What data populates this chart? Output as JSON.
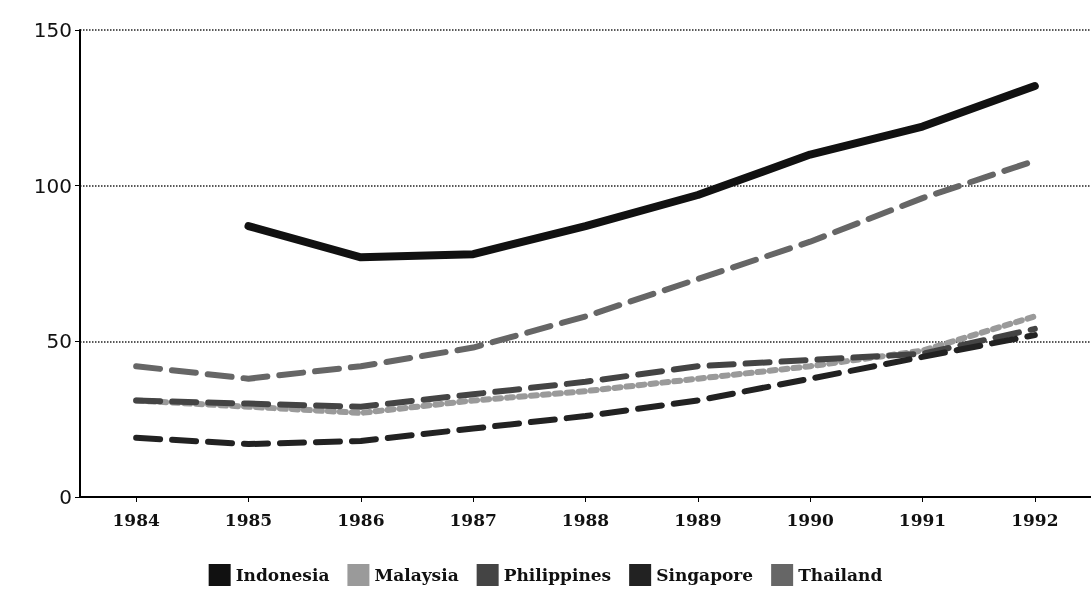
{
  "chart_data": {
    "type": "line",
    "categories": [
      "1984",
      "1985",
      "1986",
      "1987",
      "1988",
      "1989",
      "1990",
      "1991",
      "1992"
    ],
    "series": [
      {
        "name": "Indonesia",
        "color": "#111111",
        "line_style": "solid",
        "values": [
          null,
          87,
          77,
          78,
          87,
          97,
          110,
          119,
          132
        ]
      },
      {
        "name": "Malaysia",
        "color": "#9a9a9a",
        "line_style": "dotted",
        "values": [
          31,
          29,
          27,
          31,
          34,
          38,
          42,
          47,
          58
        ]
      },
      {
        "name": "Philippines",
        "color": "#444444",
        "line_style": "dashed",
        "values": [
          31,
          30,
          29,
          33,
          37,
          42,
          44,
          46,
          54
        ]
      },
      {
        "name": "Singapore",
        "color": "#222222",
        "line_style": "dashed",
        "values": [
          19,
          17,
          18,
          22,
          26,
          31,
          38,
          45,
          52
        ]
      },
      {
        "name": "Thailand",
        "color": "#666666",
        "line_style": "dashed",
        "values": [
          42,
          38,
          42,
          48,
          58,
          70,
          82,
          96,
          108
        ]
      }
    ],
    "ylim": [
      0,
      150
    ],
    "yticks": [
      0,
      50,
      100,
      150
    ],
    "grid": "y",
    "legend": "bottom",
    "marker": "none"
  }
}
